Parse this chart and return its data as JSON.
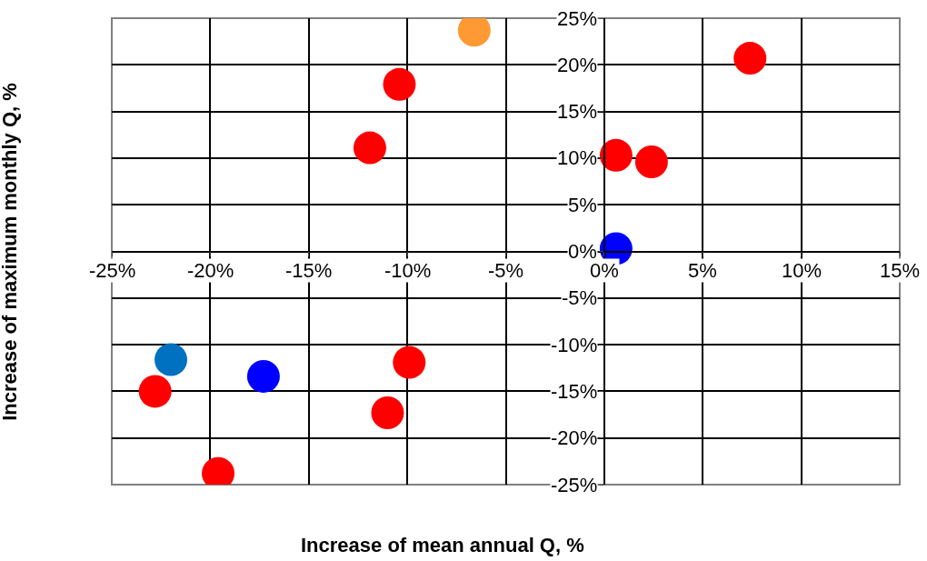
{
  "chart_data": {
    "type": "scatter",
    "xlabel": "Increase of mean annual Q, %",
    "ylabel": "Increase of maximum monthly Q, %",
    "x": [
      -6.6,
      7.4,
      -10.4,
      -11.9,
      0.6,
      2.4,
      0.6,
      -22,
      -22.8,
      -17.3,
      -9.9,
      -11,
      -19.6
    ],
    "values": [
      23.7,
      20.7,
      17.9,
      11.1,
      10.3,
      9.6,
      0.3,
      -11.6,
      -15,
      -13.4,
      -11.9,
      -17.3,
      -23.8
    ],
    "colors": [
      "#ff9933",
      "#ff0000",
      "#ff0000",
      "#ff0000",
      "#ff0000",
      "#ff0000",
      "#0000ff",
      "#0070c0",
      "#ff0000",
      "#0000ff",
      "#ff0000",
      "#ff0000",
      "#ff0000"
    ],
    "marker": "circle",
    "xlim": [
      -25,
      15
    ],
    "xticks": [
      {
        "value": -25,
        "label": "-25%"
      },
      {
        "value": -20,
        "label": "-20%"
      },
      {
        "value": -15,
        "label": "-15%"
      },
      {
        "value": -10,
        "label": "-10%"
      },
      {
        "value": -5,
        "label": "-5%"
      },
      {
        "value": 0,
        "label": "0%"
      },
      {
        "value": 5,
        "label": "5%"
      },
      {
        "value": 10,
        "label": "10%"
      },
      {
        "value": 15,
        "label": "15%"
      }
    ],
    "ylim": [
      -25,
      25
    ],
    "yticks": [
      {
        "value": -25,
        "label": "-25%"
      },
      {
        "value": -20,
        "label": "-20%"
      },
      {
        "value": -15,
        "label": "-15%"
      },
      {
        "value": -10,
        "label": "-10%"
      },
      {
        "value": -5,
        "label": "-5%"
      },
      {
        "value": 0,
        "label": "0%"
      },
      {
        "value": 5,
        "label": "5%"
      },
      {
        "value": 10,
        "label": "10%"
      },
      {
        "value": 15,
        "label": "15%"
      },
      {
        "value": 20,
        "label": "20%"
      },
      {
        "value": 25,
        "label": "25%"
      }
    ],
    "grid": true,
    "legend": false
  }
}
